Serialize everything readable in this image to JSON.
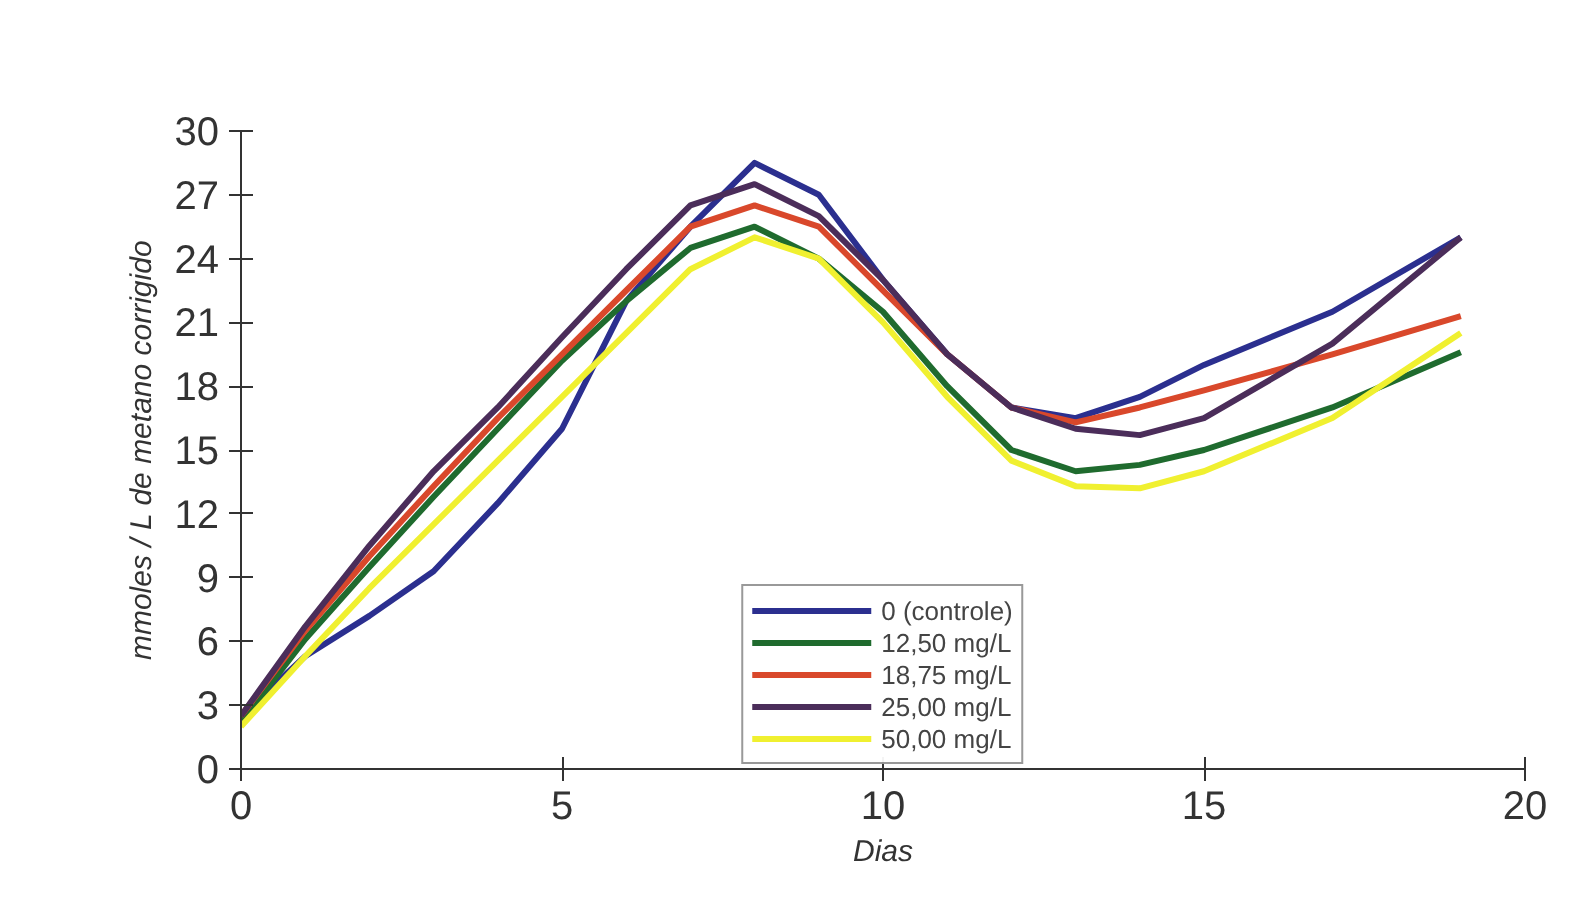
{
  "chart_data": {
    "type": "line",
    "xlabel": "Dias",
    "ylabel": "mmoles / L de metano corrigido",
    "x": [
      0,
      1,
      2,
      3,
      4,
      5,
      6,
      7,
      8,
      9,
      10,
      11,
      12,
      13,
      14,
      15,
      17,
      19
    ],
    "series": [
      {
        "name": "0 (controle)",
        "color": "#2b2f8f",
        "values": [
          2.5,
          5.3,
          7.2,
          9.3,
          12.5,
          16,
          22,
          25.5,
          28.5,
          27,
          23,
          19.5,
          17,
          16.5,
          17.5,
          19,
          21.5,
          25
        ]
      },
      {
        "name": "12,50 mg/L",
        "color": "#1f6b2e",
        "values": [
          2.2,
          6.1,
          9.5,
          12.8,
          16,
          19.2,
          22,
          24.5,
          25.5,
          24,
          21.5,
          18,
          15,
          14,
          14.3,
          15,
          17,
          19.6
        ]
      },
      {
        "name": "18,75 mg/L",
        "color": "#d9482b",
        "values": [
          2.5,
          6.5,
          10,
          13.3,
          16.5,
          19.5,
          22.5,
          25.5,
          26.5,
          25.5,
          22.5,
          19.5,
          17,
          16.3,
          17,
          17.8,
          19.5,
          21.3
        ]
      },
      {
        "name": "25,00 mg/L",
        "color": "#4b2d5a",
        "values": [
          2.5,
          6.7,
          10.5,
          14,
          17,
          20.3,
          23.5,
          26.5,
          27.5,
          26,
          23,
          19.5,
          17,
          16,
          15.7,
          16.5,
          20,
          25
        ]
      },
      {
        "name": "50,00 mg/L",
        "color": "#f0f030",
        "values": [
          2,
          5.3,
          8.5,
          11.5,
          14.5,
          17.5,
          20.5,
          23.5,
          25,
          24,
          21,
          17.5,
          14.5,
          13.3,
          13.2,
          14,
          16.5,
          20.5
        ]
      }
    ],
    "xlim": [
      0,
      20
    ],
    "ylim": [
      0,
      30
    ],
    "xticks": [
      0,
      5,
      10,
      15,
      20
    ],
    "yticks": [
      0,
      3,
      6,
      9,
      12,
      15,
      18,
      21,
      24,
      27,
      30
    ],
    "grid": false,
    "legend": "bottom",
    "line_style": "solid",
    "marker": "none"
  }
}
